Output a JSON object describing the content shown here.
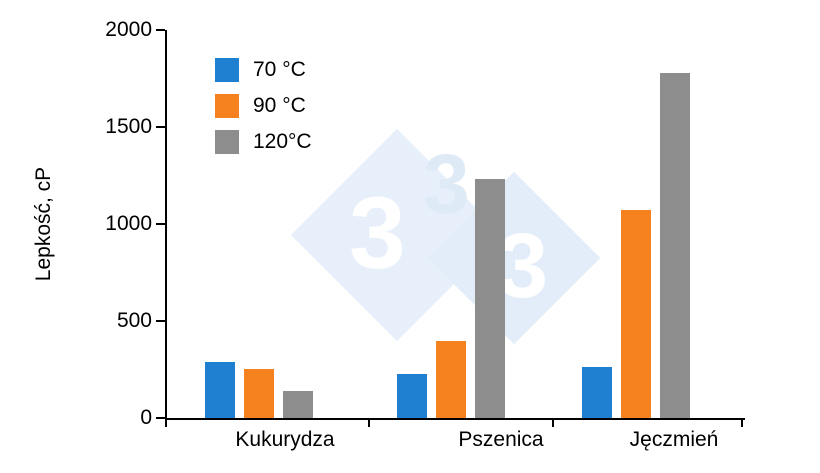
{
  "chart": {
    "ylabel": "Lepkość, cP"
  },
  "watermark": {
    "digit": "3"
  },
  "chart_data": {
    "type": "bar",
    "title": "",
    "xlabel": "",
    "ylabel": "Lepkość, cP",
    "categories": [
      "Kukurydza",
      "Pszenica",
      "Jęczmień"
    ],
    "series": [
      {
        "name": "70 °C",
        "color": "#1F7FD1",
        "values": [
          290,
          225,
          265
        ]
      },
      {
        "name": "90 °C",
        "color": "#F5821F",
        "values": [
          250,
          395,
          1070
        ]
      },
      {
        "name": "120°C",
        "color": "#8D8D8D",
        "values": [
          140,
          1230,
          1780
        ]
      }
    ],
    "ylim": [
      0,
      2000
    ],
    "yticks": [
      0,
      500,
      1000,
      1500,
      2000
    ],
    "legend_position": "top-left",
    "grid": false,
    "unit": "cP"
  }
}
